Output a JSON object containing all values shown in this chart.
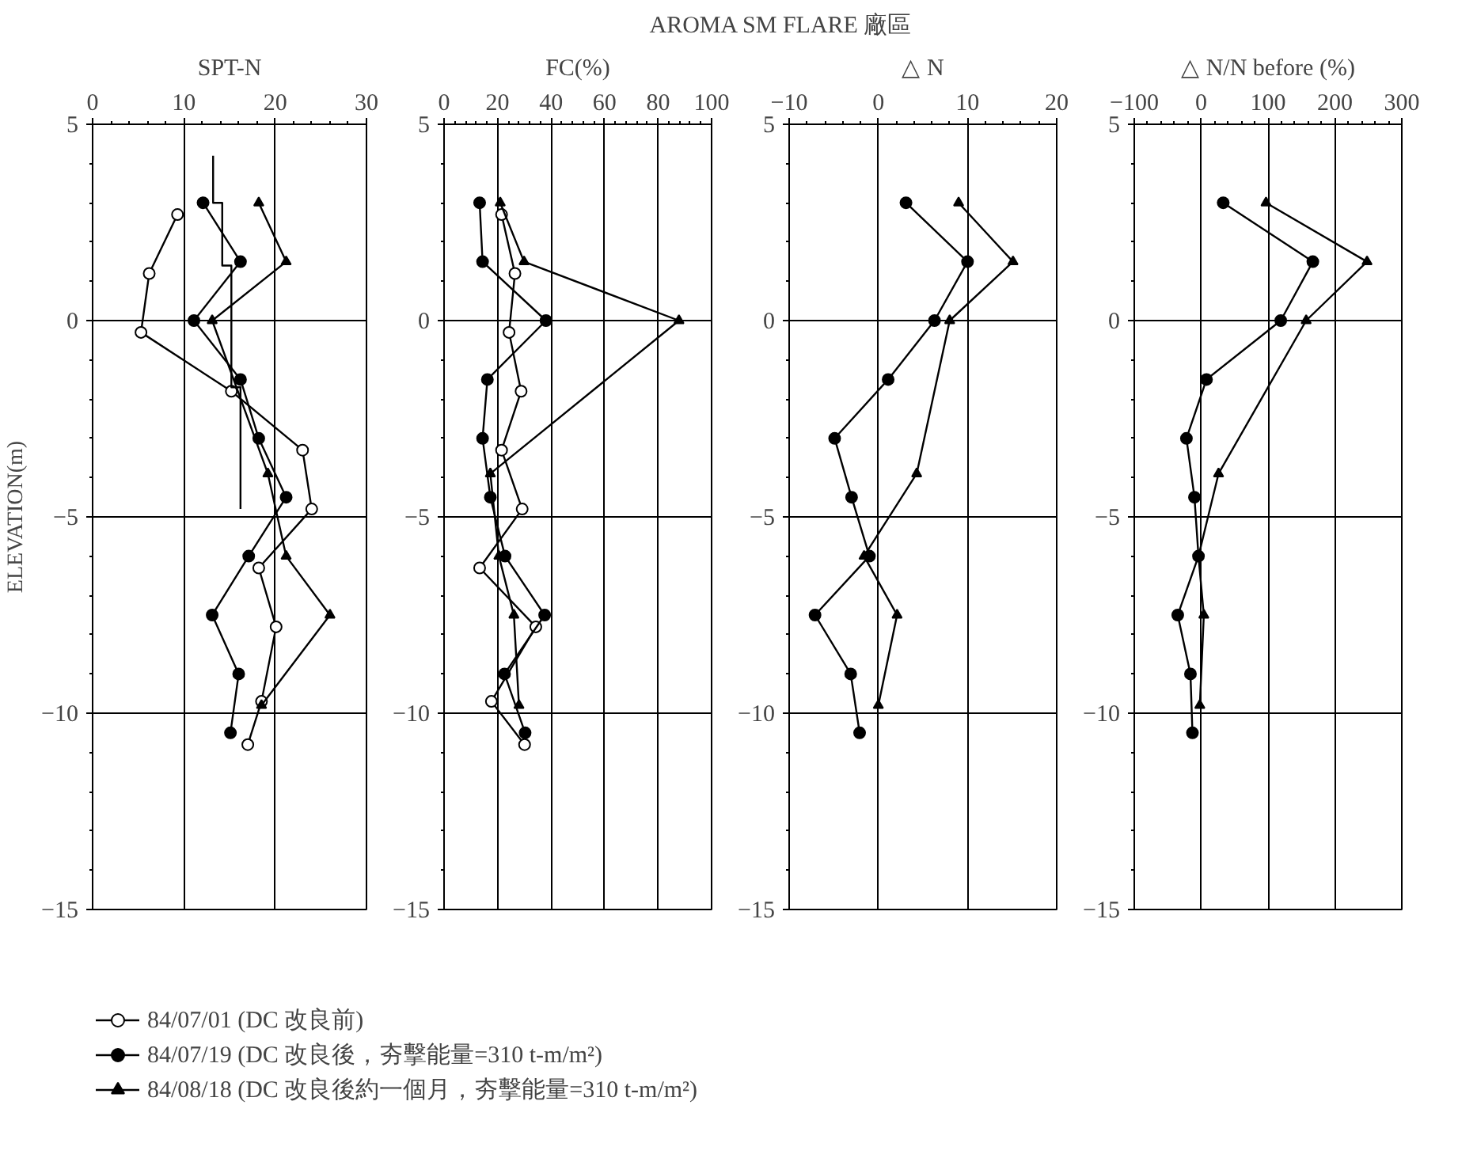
{
  "chart_data": [
    {
      "type": "line",
      "title": "SPT-N",
      "ylabel": "ELEVATION(m)",
      "annotations": [
        "AROMA SM FLARE 廠區"
      ],
      "xlim": [
        0,
        30
      ],
      "xticks": [
        0,
        10,
        20,
        30
      ],
      "ylim": [
        -15,
        5
      ],
      "yticks": [
        5,
        0,
        -5,
        -10,
        -15
      ],
      "grid": true,
      "legend": "bottom",
      "series": [
        {
          "name": "84/07/01 (DC 改良前)",
          "color": "#000000",
          "marker": "circle_open",
          "x": [
            9.3,
            6.2,
            5.3,
            15.2,
            23.0,
            24.0,
            18.2,
            20.1,
            18.5,
            17.0
          ],
          "values": [
            2.7,
            1.2,
            -0.3,
            -1.8,
            -3.3,
            -4.8,
            -6.3,
            -7.8,
            -9.7,
            -10.8
          ]
        },
        {
          "name": "84/07/19 (DC 改良後，夯擊能量=310 t-m/m²)",
          "color": "#000000",
          "marker": "circle",
          "x": [
            12.1,
            16.2,
            11.1,
            16.2,
            18.2,
            21.2,
            17.1,
            13.1,
            16.0,
            15.1
          ],
          "values": [
            3.0,
            1.5,
            0,
            -1.5,
            -3.0,
            -4.5,
            -6.0,
            -7.5,
            -9.0,
            -10.5
          ]
        },
        {
          "name": "84/08/18 (DC 改良後約一個月，夯擊能量=310 t-m/m²)",
          "color": "#000000",
          "marker": "triangle",
          "x": [
            18.2,
            21.2,
            13.1,
            19.2,
            21.2,
            26.0,
            18.5
          ],
          "values": [
            3.0,
            1.5,
            0,
            -3.9,
            -6.0,
            -7.5,
            -9.8
          ]
        },
        {
          "color": "#000000",
          "marker": "none",
          "x": [
            13.2,
            13.2,
            14.2,
            14.2,
            15.2,
            15.2,
            16.2,
            16.2
          ],
          "values": [
            4.2,
            3.0,
            3.0,
            1.4,
            1.4,
            -1.7,
            -1.7,
            -4.8
          ]
        }
      ]
    },
    {
      "type": "line",
      "title": "FC(%)",
      "xlim": [
        0,
        100
      ],
      "xticks": [
        0,
        20,
        40,
        60,
        80,
        100
      ],
      "ylim": [
        -15,
        5
      ],
      "yticks": [
        5,
        0,
        -5,
        -10,
        -15
      ],
      "grid": true,
      "series": [
        {
          "color": "#000000",
          "marker": "circle_open",
          "x": [
            21.5,
            26.5,
            24.3,
            28.8,
            21.5,
            29.2,
            13.3,
            34.3,
            17.7,
            30.1
          ],
          "values": [
            2.7,
            1.2,
            -0.3,
            -1.8,
            -3.3,
            -4.8,
            -6.3,
            -7.8,
            -9.7,
            -10.8
          ]
        },
        {
          "color": "#000000",
          "marker": "circle",
          "x": [
            13.3,
            14.4,
            38.1,
            16.2,
            14.4,
            17.3,
            22.8,
            37.6,
            22.6,
            30.3
          ],
          "values": [
            3.0,
            1.5,
            0,
            -1.5,
            -3.0,
            -4.5,
            -6.0,
            -7.5,
            -9.0,
            -10.5
          ]
        },
        {
          "color": "#000000",
          "marker": "triangle",
          "x": [
            21.0,
            29.9,
            87.8,
            17.3,
            20.5,
            26.1,
            28.0
          ],
          "values": [
            3.0,
            1.5,
            0,
            -3.9,
            -6.0,
            -7.5,
            -9.8
          ]
        }
      ]
    },
    {
      "type": "line",
      "title": "△ N",
      "xlim": [
        -10,
        20
      ],
      "xticks": [
        -10,
        0,
        10,
        20
      ],
      "ylim": [
        -15,
        5
      ],
      "yticks": [
        5,
        0,
        -5,
        -10,
        -15
      ],
      "grid": true,
      "series": [
        {
          "color": "#000000",
          "marker": "circle",
          "x": [
            3.1,
            10.0,
            6.3,
            1.1,
            -4.9,
            -3.0,
            -1.0,
            -7.1,
            -3.1,
            -2.1
          ],
          "values": [
            3.0,
            1.5,
            0,
            -1.5,
            -3.0,
            -4.5,
            -6.0,
            -7.5,
            -9.0,
            -10.5
          ]
        },
        {
          "color": "#000000",
          "marker": "triangle",
          "x": [
            9.0,
            15.1,
            8.0,
            4.3,
            -1.6,
            2.1,
            0.0
          ],
          "values": [
            3.0,
            1.5,
            0,
            -3.9,
            -6.0,
            -7.5,
            -9.8
          ]
        }
      ]
    },
    {
      "type": "line",
      "title": "△ N/N before (%)",
      "xlim": [
        -100,
        300
      ],
      "xticks": [
        -100,
        0,
        100,
        200,
        300
      ],
      "ylim": [
        -15,
        5
      ],
      "yticks": [
        5,
        0,
        -5,
        -10,
        -15
      ],
      "grid": true,
      "series": [
        {
          "color": "#000000",
          "marker": "circle",
          "x": [
            33,
            167,
            119,
            8,
            -22,
            -10,
            -4,
            -35,
            -16,
            -13
          ],
          "values": [
            3.0,
            1.5,
            0,
            -1.5,
            -3.0,
            -4.5,
            -6.0,
            -7.5,
            -9.0,
            -10.5
          ]
        },
        {
          "color": "#000000",
          "marker": "triangle",
          "x": [
            97,
            248,
            157,
            26,
            -4,
            4,
            -2
          ],
          "values": [
            3.0,
            1.5,
            0,
            -3.9,
            -6.0,
            -7.5,
            -9.8
          ]
        }
      ]
    }
  ]
}
